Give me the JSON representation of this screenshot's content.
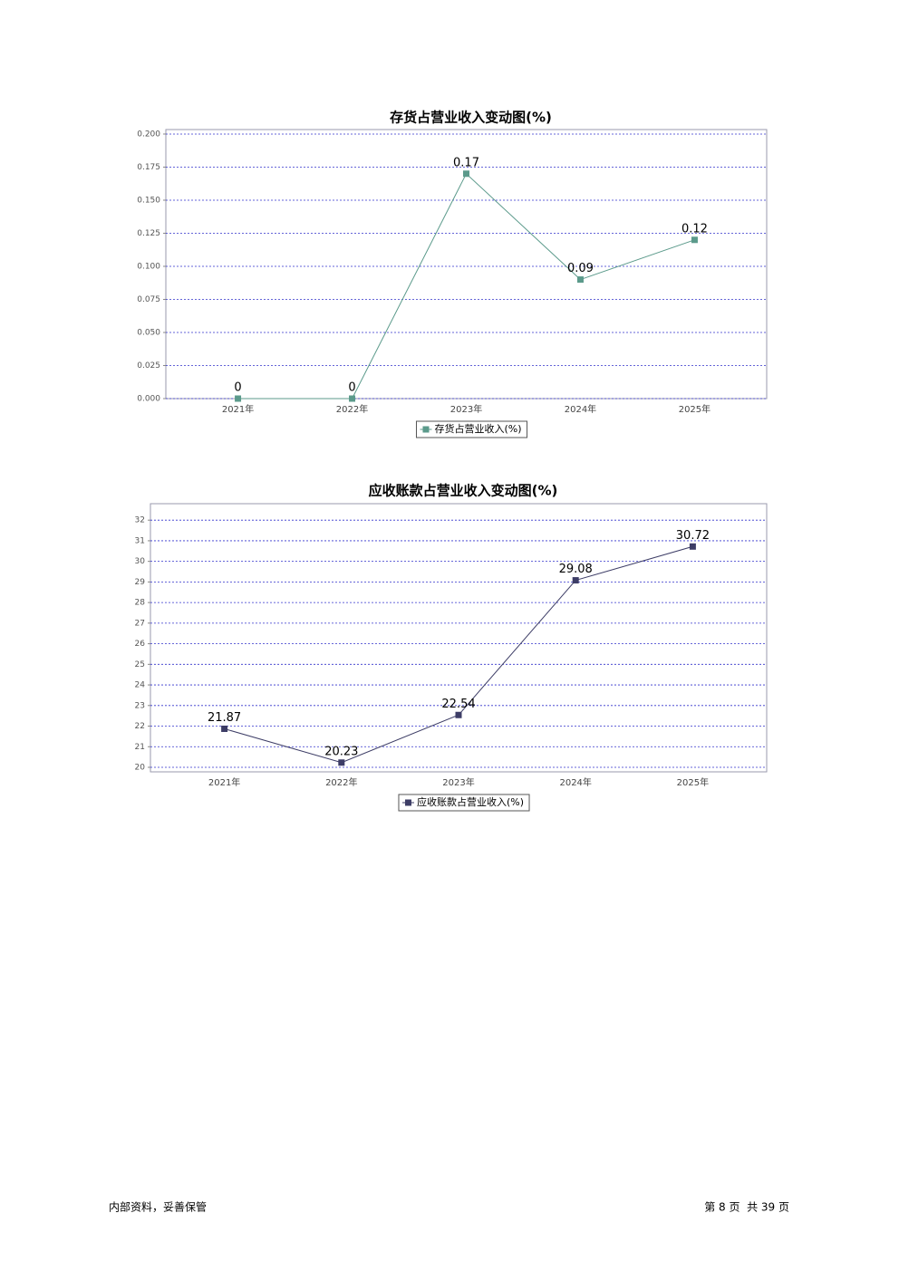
{
  "chart_data": [
    {
      "type": "line",
      "title": "存货占营业收入变动图(%)",
      "categories": [
        "2021年",
        "2022年",
        "2023年",
        "2024年",
        "2025年"
      ],
      "series": [
        {
          "name": "存货占营业收入(%)",
          "color": "#5b9a8b",
          "values": [
            0,
            0,
            0.17,
            0.09,
            0.12
          ]
        }
      ],
      "ylim": [
        0,
        0.2034
      ],
      "yticks": [
        {
          "value": 0,
          "label": "0.000"
        },
        {
          "value": 0.025,
          "label": "0.025"
        },
        {
          "value": 0.05,
          "label": "0.050"
        },
        {
          "value": 0.075,
          "label": "0.075"
        },
        {
          "value": 0.1,
          "label": "0.100"
        },
        {
          "value": 0.125,
          "label": "0.125"
        },
        {
          "value": 0.15,
          "label": "0.150"
        },
        {
          "value": 0.175,
          "label": "0.175"
        },
        {
          "value": 0.2,
          "label": "0.200"
        }
      ],
      "grid": true,
      "legend": "bottom"
    },
    {
      "type": "line",
      "title": "应收账款占营业收入变动图(%)",
      "categories": [
        "2021年",
        "2022年",
        "2023年",
        "2024年",
        "2025年"
      ],
      "series": [
        {
          "name": "应收账款占营业收入(%)",
          "color": "#3d3d66",
          "values": [
            21.87,
            20.23,
            22.54,
            29.08,
            30.72
          ]
        }
      ],
      "ylim": [
        19.78,
        32.8
      ],
      "yticks": [
        20,
        21,
        22,
        23,
        24,
        25,
        26,
        27,
        28,
        29,
        30,
        31,
        32
      ],
      "grid": true,
      "legend": "bottom"
    }
  ],
  "footer": {
    "left": "内部资料，妥善保管",
    "right": "第 8 页  共 39 页"
  }
}
